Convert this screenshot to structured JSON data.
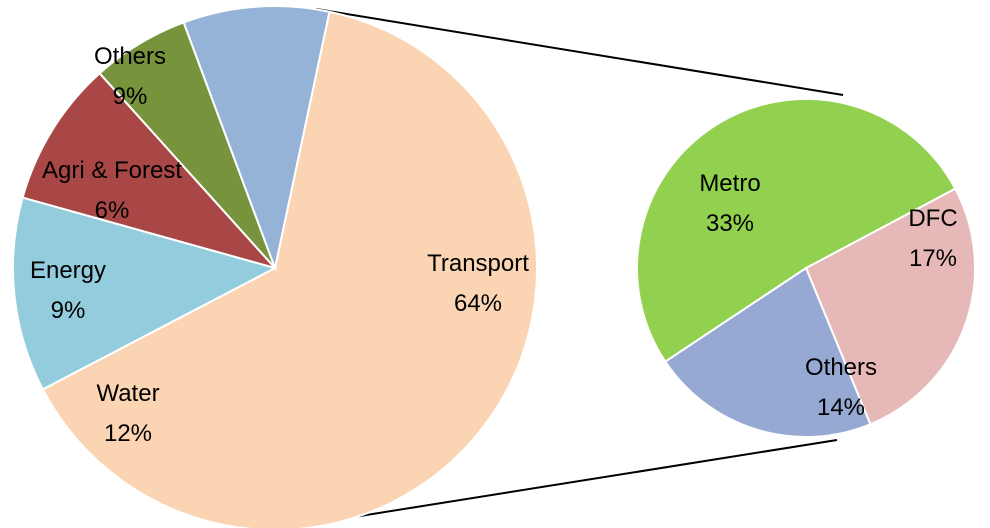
{
  "chart_data": [
    {
      "type": "pie",
      "role": "main",
      "slices": [
        {
          "label": "Transport",
          "value_label": "64%",
          "value": 64,
          "color": "#FBD4B4"
        },
        {
          "label": "Water",
          "value_label": "12%",
          "value": 12,
          "color": "#93CDDD"
        },
        {
          "label": "Energy",
          "value_label": "9%",
          "value": 9,
          "color": "#A84745"
        },
        {
          "label": "Agri & Forest",
          "value_label": "6%",
          "value": 6,
          "color": "#77933C"
        },
        {
          "label": "Others",
          "value_label": "9%",
          "value": 9,
          "color": "#95B3D7"
        }
      ]
    },
    {
      "type": "pie",
      "role": "breakdown-of-transport",
      "slices": [
        {
          "label": "DFC",
          "value_label": "17%",
          "value": 17,
          "color": "#E6B9B8"
        },
        {
          "label": "Others",
          "value_label": "14%",
          "value": 14,
          "color": "#95A9D2"
        },
        {
          "label": "Metro",
          "value_label": "33%",
          "value": 33,
          "color": "#92D050"
        }
      ]
    }
  ]
}
